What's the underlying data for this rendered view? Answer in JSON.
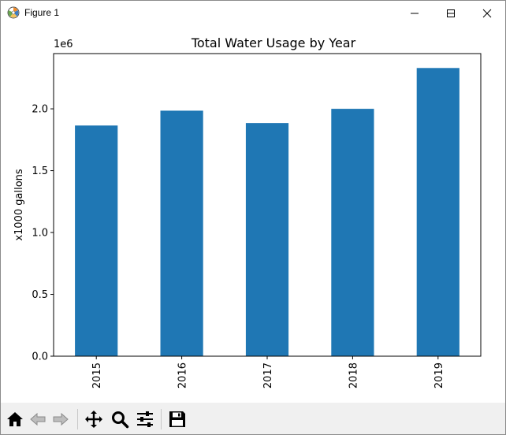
{
  "window": {
    "title": "Figure 1",
    "controls": {
      "minimize": "minimize",
      "maximize": "maximize",
      "close": "close"
    }
  },
  "toolbar": {
    "buttons": [
      "home-icon",
      "back-icon",
      "forward-icon",
      "pan-icon",
      "zoom-icon",
      "configure-subplots-icon",
      "save-icon"
    ]
  },
  "colors": {
    "bar": "#1f77b4",
    "toolbar_bg": "#f0f0f0"
  },
  "chart_data": {
    "type": "bar",
    "title": "Total Water Usage by Year",
    "xlabel": "",
    "ylabel": "x1000 gallons",
    "offset_label": "1e6",
    "categories": [
      "2015",
      "2016",
      "2017",
      "2018",
      "2019"
    ],
    "values": [
      1865000,
      1985000,
      1885000,
      2000000,
      2330000
    ],
    "yticks": [
      0.0,
      0.5,
      1.0,
      1.5,
      2.0
    ],
    "ytick_labels": [
      "0.0",
      "0.5",
      "1.0",
      "1.5",
      "2.0"
    ],
    "ylim": [
      0,
      2446500
    ],
    "ytick_scale": 1000000,
    "xtick_rotation": "vertical",
    "grid": false,
    "legend": "none"
  }
}
